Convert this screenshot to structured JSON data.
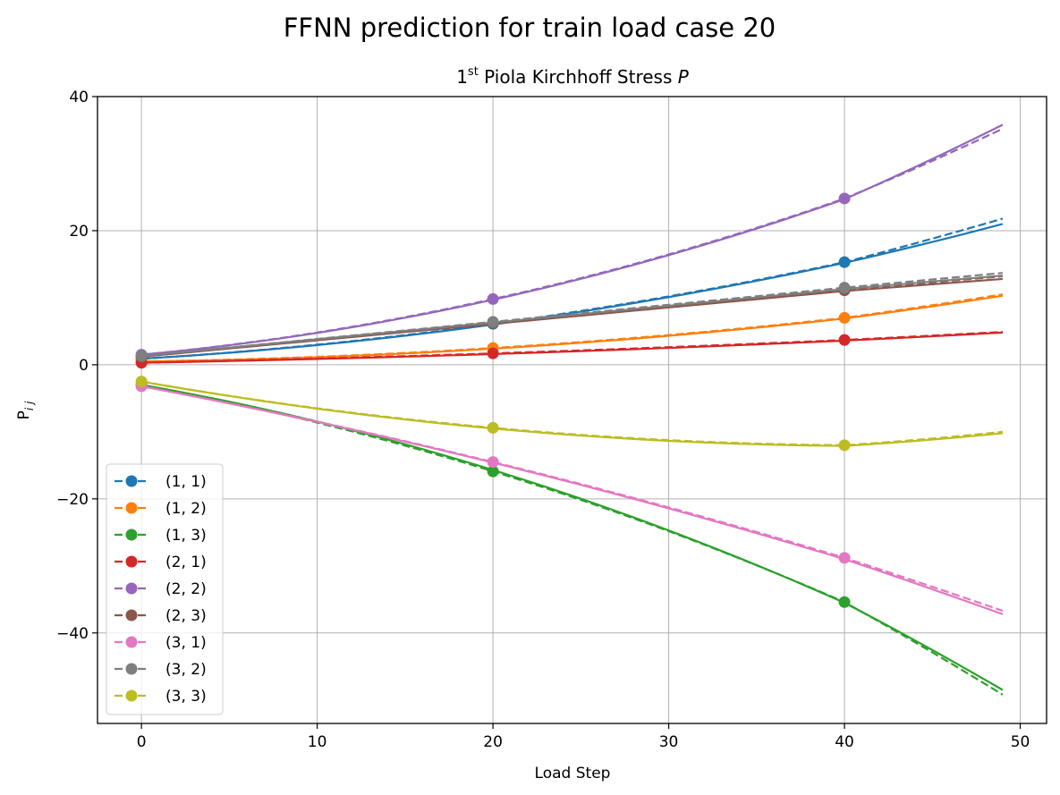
{
  "chart_data": {
    "type": "line",
    "suptitle": "FFNN prediction for train load case 20",
    "title": {
      "prefix": "1",
      "sup": "st",
      "main": " Piola Kirchhoff Stress ",
      "symbol": "P"
    },
    "xlabel": "Load Step",
    "ylabel": {
      "main": "P",
      "sub": "i j"
    },
    "xlim": [
      -2.5,
      51.5
    ],
    "ylim": [
      -53.5,
      40
    ],
    "xticks": [
      0,
      10,
      20,
      30,
      40,
      50
    ],
    "yticks": [
      -40,
      -20,
      0,
      20,
      40
    ],
    "ytick_labels": [
      "−40",
      "−20",
      "0",
      "20",
      "40"
    ],
    "grid": true,
    "legend_position": "lower-left",
    "marker_steps": [
      0,
      20,
      40
    ],
    "x_end": 49,
    "series": [
      {
        "name": "(1, 1)",
        "color": "#1f77b4",
        "true": {
          "x": [
            0,
            20,
            40,
            49
          ],
          "y": [
            0.9,
            6.1,
            15.3,
            21.8
          ]
        },
        "pred": {
          "x": [
            0,
            20,
            40,
            49
          ],
          "y": [
            0.9,
            6.0,
            15.2,
            21.0
          ]
        }
      },
      {
        "name": "(1, 2)",
        "color": "#ff7f0e",
        "true": {
          "x": [
            0,
            20,
            40,
            49
          ],
          "y": [
            0.5,
            2.5,
            7.0,
            10.5
          ]
        },
        "pred": {
          "x": [
            0,
            20,
            40,
            49
          ],
          "y": [
            0.5,
            2.4,
            6.9,
            10.3
          ]
        }
      },
      {
        "name": "(1, 3)",
        "color": "#2ca02c",
        "true": {
          "x": [
            0,
            20,
            40,
            49
          ],
          "y": [
            -3.0,
            -15.9,
            -35.4,
            -49.2
          ]
        },
        "pred": {
          "x": [
            0,
            20,
            40,
            49
          ],
          "y": [
            -3.0,
            -15.7,
            -35.5,
            -48.5
          ]
        }
      },
      {
        "name": "(2, 1)",
        "color": "#d62728",
        "true": {
          "x": [
            0,
            20,
            40,
            49
          ],
          "y": [
            0.3,
            1.7,
            3.7,
            4.9
          ]
        },
        "pred": {
          "x": [
            0,
            20,
            40,
            49
          ],
          "y": [
            0.3,
            1.6,
            3.6,
            4.8
          ]
        }
      },
      {
        "name": "(2, 2)",
        "color": "#9467bd",
        "true": {
          "x": [
            0,
            20,
            40,
            49
          ],
          "y": [
            1.5,
            9.8,
            24.8,
            35.2
          ]
        },
        "pred": {
          "x": [
            0,
            20,
            40,
            49
          ],
          "y": [
            1.5,
            9.7,
            24.7,
            35.8
          ]
        }
      },
      {
        "name": "(2, 3)",
        "color": "#8c564b",
        "true": {
          "x": [
            0,
            20,
            40,
            49
          ],
          "y": [
            1.2,
            6.2,
            11.1,
            13.2
          ]
        },
        "pred": {
          "x": [
            0,
            20,
            40,
            49
          ],
          "y": [
            1.2,
            6.1,
            11.0,
            12.8
          ]
        }
      },
      {
        "name": "(3, 1)",
        "color": "#e377c2",
        "true": {
          "x": [
            0,
            20,
            40,
            49
          ],
          "y": [
            -3.2,
            -14.5,
            -28.8,
            -36.7
          ]
        },
        "pred": {
          "x": [
            0,
            20,
            40,
            49
          ],
          "y": [
            -3.2,
            -14.6,
            -29.0,
            -37.2
          ]
        }
      },
      {
        "name": "(3, 2)",
        "color": "#7f7f7f",
        "true": {
          "x": [
            0,
            20,
            40,
            49
          ],
          "y": [
            1.3,
            6.4,
            11.5,
            13.7
          ]
        },
        "pred": {
          "x": [
            0,
            20,
            40,
            49
          ],
          "y": [
            1.3,
            6.3,
            11.3,
            13.3
          ]
        }
      },
      {
        "name": "(3, 3)",
        "color": "#bcbd22",
        "true": {
          "x": [
            0,
            20,
            40,
            49
          ],
          "y": [
            -2.5,
            -9.4,
            -12.0,
            -10.0
          ]
        },
        "pred": {
          "x": [
            0,
            20,
            40,
            49
          ],
          "y": [
            -2.5,
            -9.5,
            -12.1,
            -10.2
          ]
        }
      }
    ]
  }
}
